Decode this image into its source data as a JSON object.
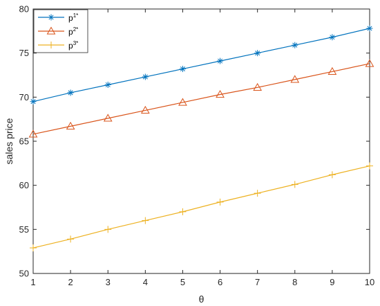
{
  "chart_data": {
    "type": "line",
    "title": "",
    "xlabel": "θ",
    "ylabel": "sales price",
    "xlim": [
      1,
      10
    ],
    "ylim": [
      50,
      80
    ],
    "x": [
      1,
      2,
      3,
      4,
      5,
      6,
      7,
      8,
      9,
      10
    ],
    "xticks": [
      "1",
      "2",
      "3",
      "4",
      "5",
      "6",
      "7",
      "8",
      "9",
      "10"
    ],
    "yticks": [
      "50",
      "55",
      "60",
      "65",
      "70",
      "75",
      "80"
    ],
    "grid": false,
    "legend_position": "top-left",
    "series": [
      {
        "name": "p",
        "name_sup": "1*",
        "color": "#0072BD",
        "marker": "asterisk",
        "values": [
          69.5,
          70.5,
          71.4,
          72.3,
          73.2,
          74.1,
          75.0,
          75.9,
          76.8,
          77.8
        ]
      },
      {
        "name": "p",
        "name_sup": "2*",
        "color": "#D95319",
        "marker": "triangle",
        "values": [
          65.8,
          66.7,
          67.6,
          68.5,
          69.4,
          70.3,
          71.1,
          72.0,
          72.9,
          73.8
        ]
      },
      {
        "name": "p",
        "name_sup": "3*",
        "color": "#EDB120",
        "marker": "plus",
        "values": [
          52.9,
          53.9,
          55.0,
          56.0,
          57.0,
          58.1,
          59.1,
          60.1,
          61.2,
          62.2
        ]
      }
    ]
  }
}
